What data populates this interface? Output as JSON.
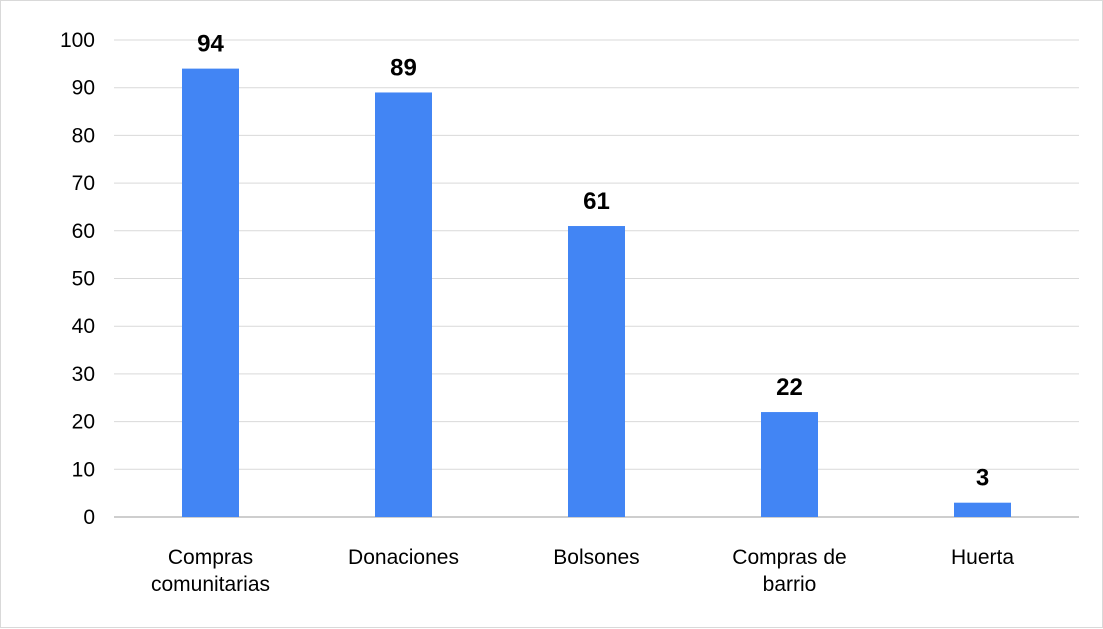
{
  "chart_data": {
    "type": "bar",
    "categories": [
      [
        "Compras",
        "comunitarias"
      ],
      [
        "Donaciones"
      ],
      [
        "Bolsones"
      ],
      [
        "Compras de",
        "barrio"
      ],
      [
        "Huerta"
      ]
    ],
    "values": [
      94,
      89,
      61,
      22,
      3
    ],
    "data_labels": [
      "94",
      "89",
      "61",
      "22",
      "3"
    ],
    "y_ticks": [
      "0",
      "10",
      "20",
      "30",
      "40",
      "50",
      "60",
      "70",
      "80",
      "90",
      "100"
    ],
    "ylim": [
      0,
      100
    ],
    "grid": true,
    "legend": "none",
    "colors": {
      "bar": "#4285f4",
      "grid": "#d9d9d9",
      "axis": "#bdbdbd",
      "frame": "#d9d9d9"
    }
  }
}
